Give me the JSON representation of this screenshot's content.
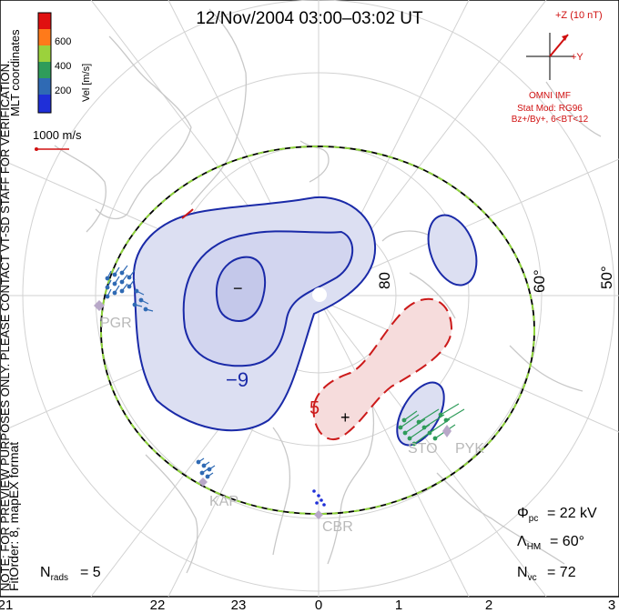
{
  "title": "12/Nov/2004 03:00–03:02 UT",
  "colorbar": {
    "label": "Vel [m/s]",
    "ticks": [
      "600",
      "400",
      "200"
    ],
    "colors": [
      "#e01010",
      "#ff7a1a",
      "#9bd23c",
      "#2f9c5a",
      "#2f6ab4",
      "#1f2fd8"
    ]
  },
  "coords_label": "MLT coordinates",
  "side_note": "NOTE: FOR PREVIEW PURPOSES ONLY. PLEASE CONTACT VT-SD STAFF FOR VERIFICATION.",
  "fit_note": "FitOrder: 8, mapEX format",
  "vector_scale": "1000 m/s",
  "imf": {
    "z_label": "+Z (10 nT)",
    "y_label": "+Y",
    "line1": "OMNI IMF",
    "line2": "Stat Mod: RG96",
    "line3": "Bz+/By+, 6<BT<12"
  },
  "lat_labels": [
    "80",
    "60°",
    "50°"
  ],
  "stations": [
    "PGR",
    "KAP",
    "CBR",
    "STO",
    "PYK"
  ],
  "contour_labels": {
    "neg": "−9",
    "pos": "5",
    "min_mark": "−",
    "max_mark": "+"
  },
  "stats": {
    "phi_symbol": "Φ",
    "phi_sub": "pc",
    "phi_value": "= 22 kV",
    "lambda_symbol": "Λ",
    "lambda_sub": "HM",
    "lambda_value": "= 60°",
    "nvc_symbol": "N",
    "nvc_sub": "vc",
    "nvc_value": "= 72",
    "nrads_symbol": "N",
    "nrads_sub": "rads",
    "nrads_value": "= 5"
  },
  "mlt_ticks": [
    "21",
    "22",
    "23",
    "0",
    "1",
    "2",
    "3"
  ],
  "colors": {
    "neg_fill": "#dcdff2",
    "neg_fill_inner": "#c4c8ea",
    "neg_line": "#1a2aa8",
    "pos_fill": "#f6dcdc",
    "pos_line": "#cc1a1a",
    "boundary": "#8fd43c",
    "coast": "#c8c8c8",
    "grid": "#d2d2d2",
    "imf_red": "#d01010"
  }
}
